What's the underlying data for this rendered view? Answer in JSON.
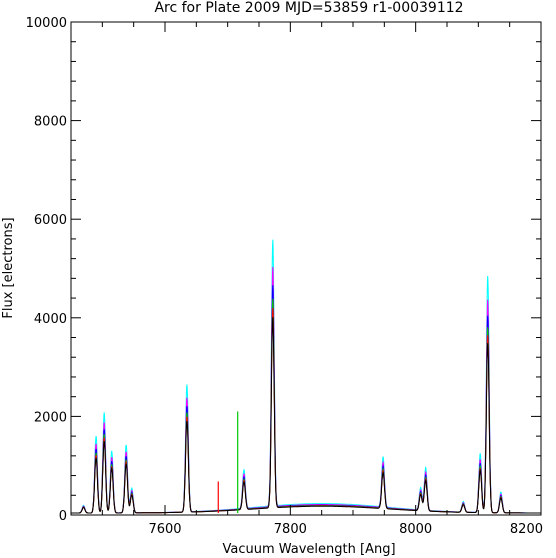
{
  "chart_data": {
    "type": "line",
    "title": "Arc for Plate 2009   MJD=53859   r1-00039112",
    "xlabel": "Vacuum Wavelength [Ang]",
    "ylabel": "Flux [electrons]",
    "xlim": [
      7450,
      8200
    ],
    "ylim": [
      0,
      10000
    ],
    "x_ticks": [
      7600,
      7800,
      8000,
      8200
    ],
    "y_ticks": [
      0,
      2000,
      4000,
      6000,
      8000,
      10000
    ],
    "grid": false,
    "legend": "none",
    "baseline": 40,
    "continuum": {
      "center": 7850,
      "width": 150,
      "amplitude": 160
    },
    "series": [
      {
        "color": "#00ffff",
        "scale": 1.2
      },
      {
        "color": "#ff00ff",
        "scale": 1.08
      },
      {
        "color": "#0000ff",
        "scale": 1.0
      },
      {
        "color": "#00c800",
        "scale": 0.94
      },
      {
        "color": "#ff0000",
        "scale": 0.9
      },
      {
        "color": "#000000",
        "scale": 0.86
      }
    ],
    "lines": [
      {
        "x": 7470,
        "y": 130
      },
      {
        "x": 7490,
        "y": 1300
      },
      {
        "x": 7503,
        "y": 1700
      },
      {
        "x": 7515,
        "y": 1050
      },
      {
        "x": 7538,
        "y": 1150
      },
      {
        "x": 7547,
        "y": 420
      },
      {
        "x": 7635,
        "y": 2150
      },
      {
        "x": 7726,
        "y": 650
      },
      {
        "x": 7772,
        "y": 4500
      },
      {
        "x": 7948,
        "y": 850
      },
      {
        "x": 8008,
        "y": 380
      },
      {
        "x": 8016,
        "y": 720
      },
      {
        "x": 8076,
        "y": 180
      },
      {
        "x": 8103,
        "y": 1000
      },
      {
        "x": 8115,
        "y": 4000
      },
      {
        "x": 8136,
        "y": 350
      }
    ],
    "spikes": [
      {
        "x": 7685,
        "y": 680,
        "color": "#ff0000"
      },
      {
        "x": 7716,
        "y": 2100,
        "color": "#00c800"
      }
    ]
  }
}
